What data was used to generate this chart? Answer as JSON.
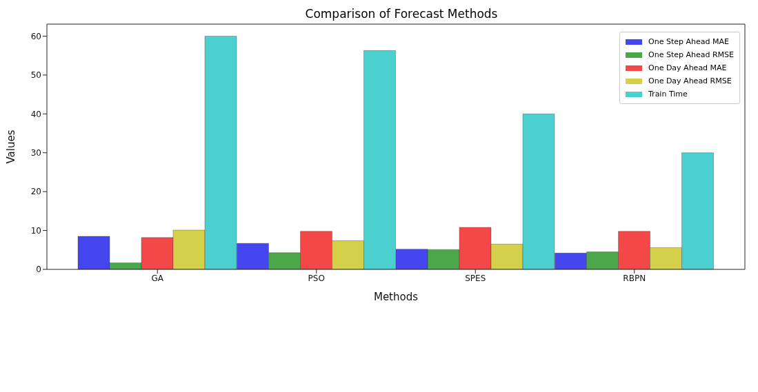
{
  "chart_data": {
    "type": "bar",
    "title": "Comparison of Forecast Methods",
    "xlabel": "Methods",
    "ylabel": "Values",
    "categories": [
      "GA",
      "PSO",
      "SPES",
      "RBPN"
    ],
    "series": [
      {
        "name": "One Step Ahead MAE",
        "color": "#4646f0",
        "values": [
          8.5,
          6.7,
          5.2,
          4.2
        ]
      },
      {
        "name": "One Step Ahead RMSE",
        "color": "#4aa84a",
        "values": [
          1.7,
          4.3,
          5.1,
          4.5
        ]
      },
      {
        "name": "One Day Ahead MAE",
        "color": "#f44848",
        "values": [
          8.2,
          9.8,
          10.8,
          9.8
        ]
      },
      {
        "name": "One Day Ahead RMSE",
        "color": "#d4d04a",
        "values": [
          10.1,
          7.4,
          6.5,
          5.6
        ]
      },
      {
        "name": "Train Time",
        "color": "#4ccfcf",
        "values": [
          60,
          56.3,
          40,
          30
        ]
      }
    ],
    "ylim": [
      0,
      63.1
    ],
    "yticks": [
      0,
      10,
      20,
      30,
      40,
      50,
      60
    ],
    "grid": false,
    "legend": "top right"
  }
}
